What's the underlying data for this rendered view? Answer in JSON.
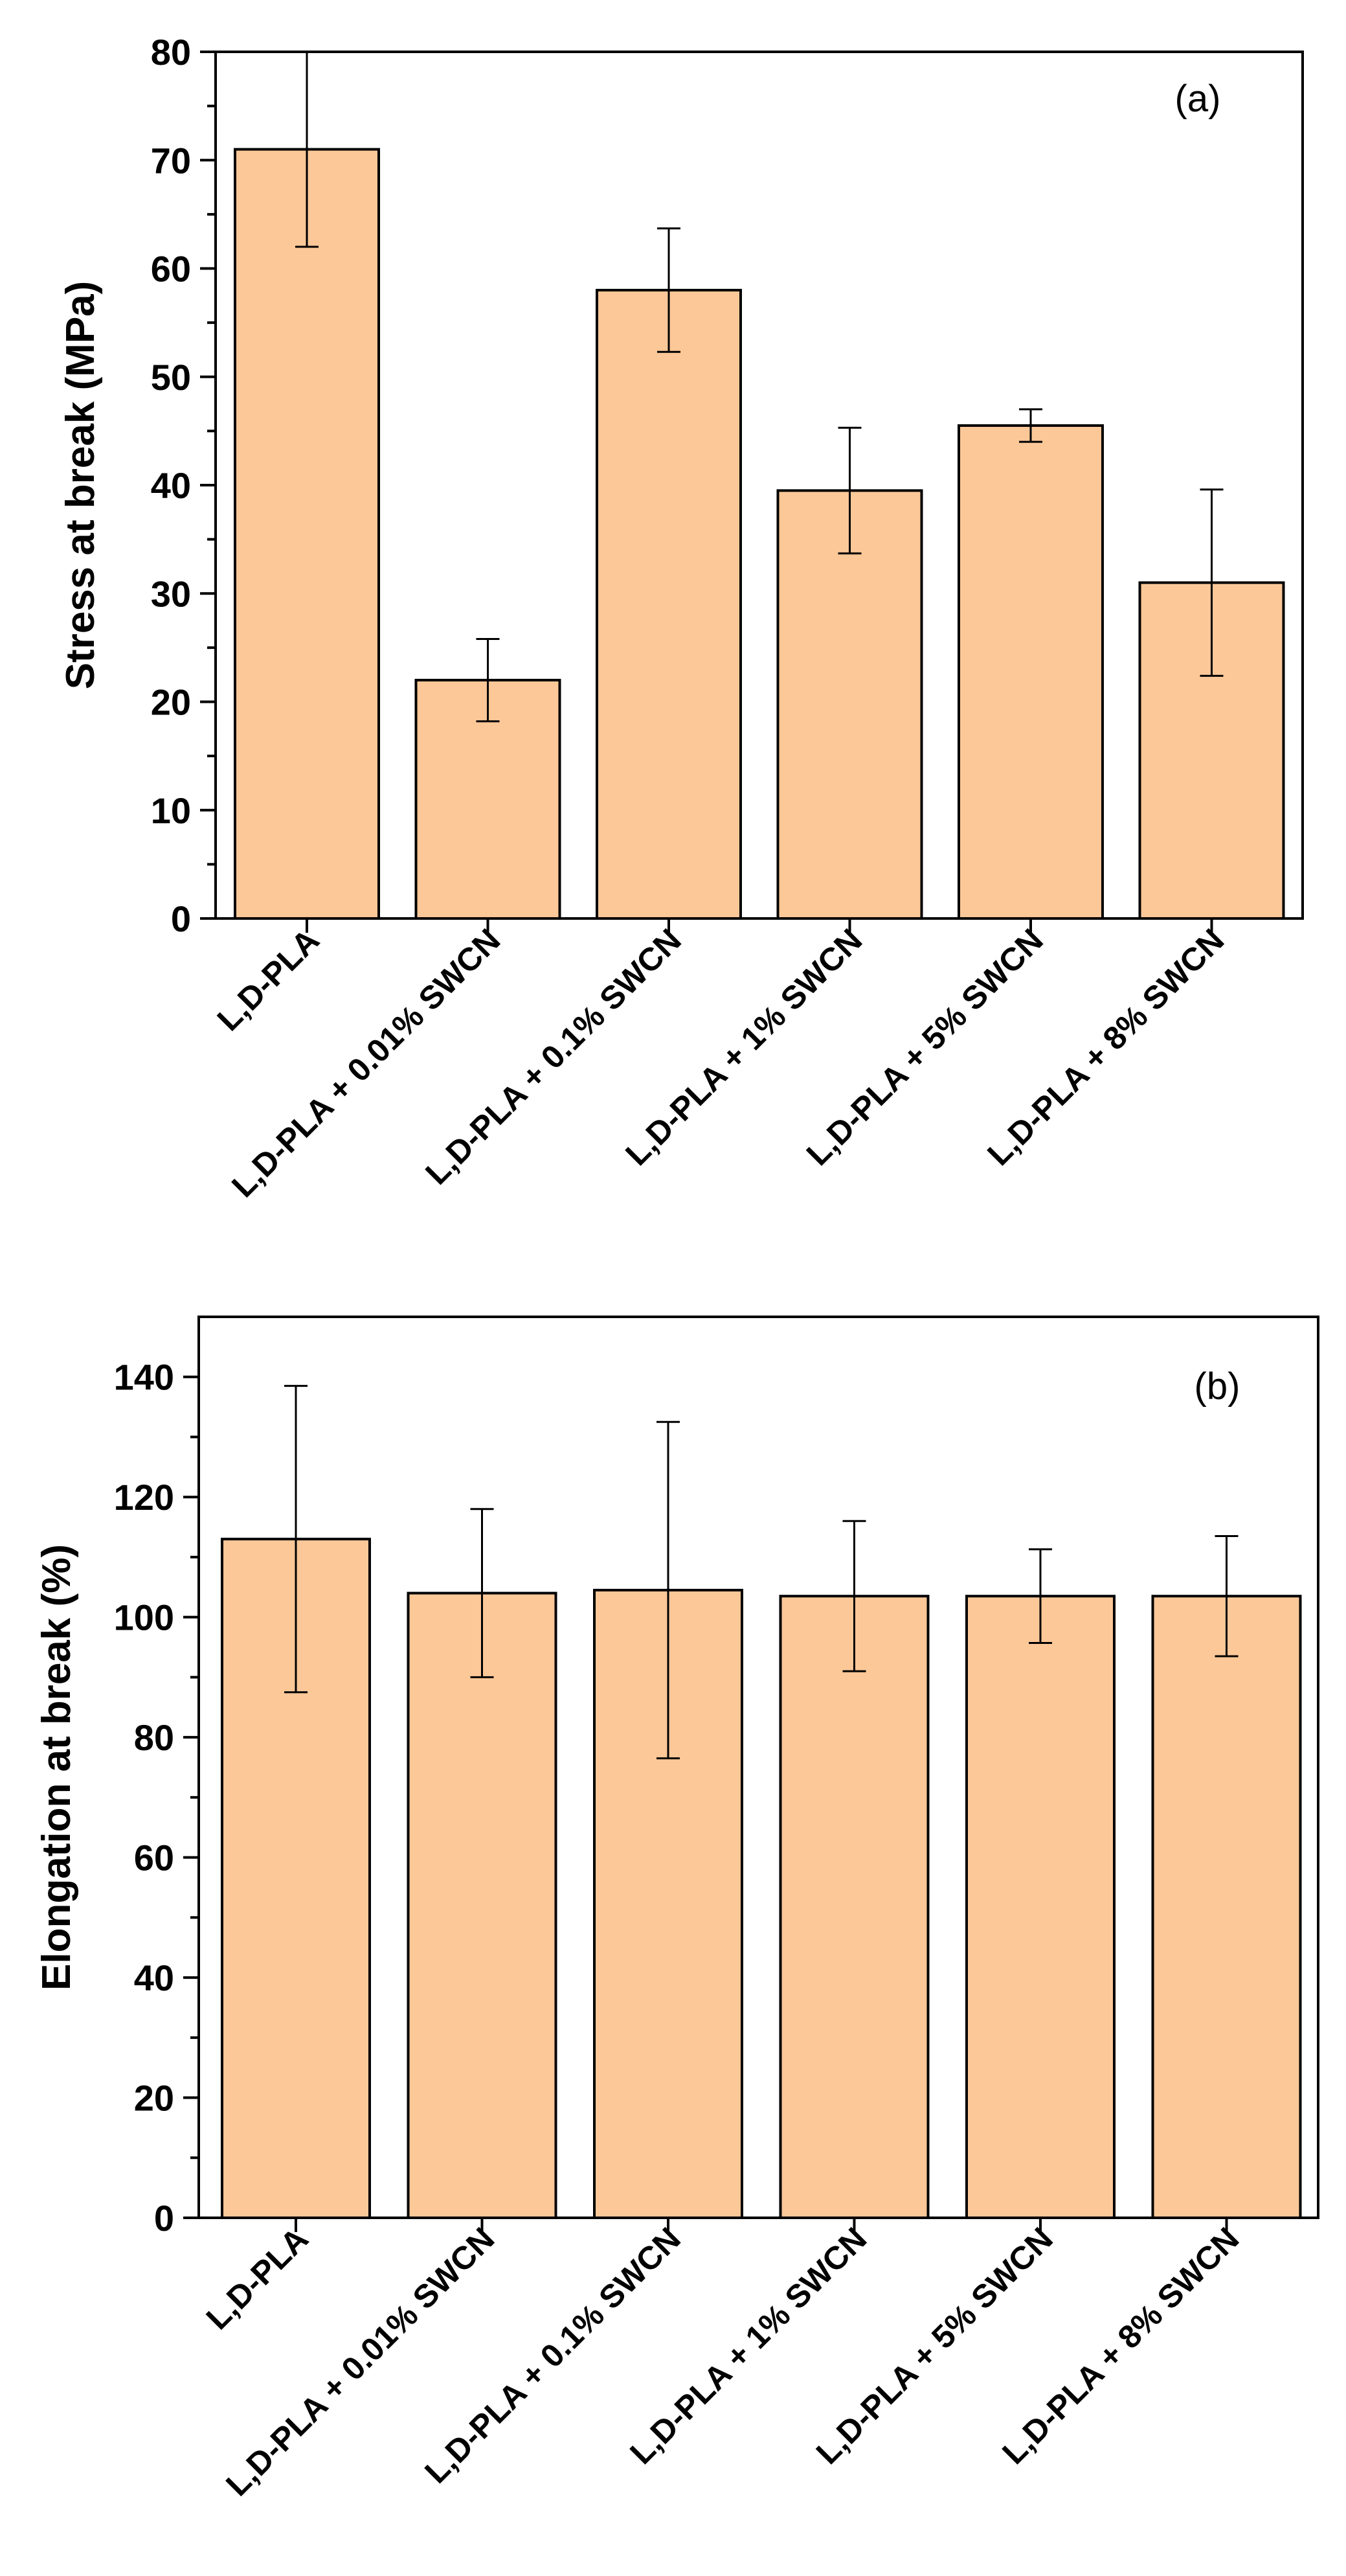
{
  "chart_data": [
    {
      "type": "bar",
      "panel_label": "(a)",
      "ylabel": "Stress at break (MPa)",
      "xlabel": "",
      "ylim": [
        0,
        80
      ],
      "yticks": [
        0,
        10,
        20,
        30,
        40,
        50,
        60,
        70,
        80
      ],
      "categories": [
        "L,D-PLA",
        "L,D-PLA + 0.01% SWCN",
        "L,D-PLA + 0.1% SWCN",
        "L,D-PLA + 1% SWCN",
        "L,D-PLA + 5% SWCN",
        "L,D-PLA + 8% SWCN"
      ],
      "values": [
        71,
        22,
        58,
        39.5,
        45.5,
        31
      ],
      "errors": [
        9,
        3.8,
        5.7,
        5.8,
        1.5,
        8.6
      ],
      "bar_color": "#FDC898"
    },
    {
      "type": "bar",
      "panel_label": "(b)",
      "ylabel": "Elongation at break (%)",
      "xlabel": "",
      "ylim": [
        0,
        150
      ],
      "yticks": [
        0,
        20,
        40,
        60,
        80,
        100,
        120,
        140
      ],
      "categories": [
        "L,D-PLA",
        "L,D-PLA + 0.01% SWCN",
        "L,D-PLA + 0.1% SWCN",
        "L,D-PLA + 1% SWCN",
        "L,D-PLA + 5% SWCN",
        "L,D-PLA + 8% SWCN"
      ],
      "values": [
        113,
        104,
        104.5,
        103.5,
        103.5,
        103.5
      ],
      "errors": [
        25.5,
        14,
        28,
        12.5,
        7.8,
        10
      ],
      "bar_color": "#FDC898"
    }
  ]
}
